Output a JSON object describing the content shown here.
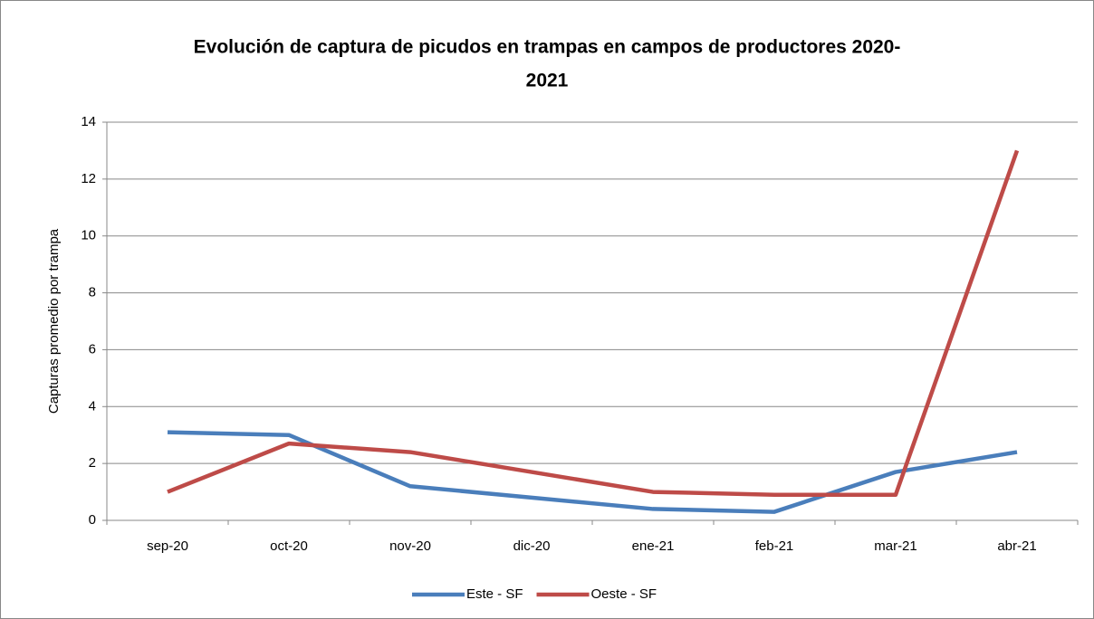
{
  "chart_data": {
    "type": "line",
    "title": [
      "Evolución de captura de picudos en trampas en campos de productores 2020-",
      "2021"
    ],
    "y_label": "Capturas promedio por trampa",
    "categories": [
      "sep-20",
      "oct-20",
      "nov-20",
      "dic-20",
      "ene-21",
      "feb-21",
      "mar-21",
      "abr-21"
    ],
    "series": [
      {
        "name": "Este - SF",
        "color": "#4a7ebb",
        "values": [
          3.1,
          3.0,
          1.2,
          0.8,
          0.4,
          0.3,
          1.7,
          2.4
        ]
      },
      {
        "name": "Oeste - SF",
        "color": "#be4b48",
        "values": [
          1.0,
          2.7,
          2.4,
          1.7,
          1.0,
          0.9,
          0.9,
          13
        ]
      }
    ],
    "ylim": [
      0,
      14
    ],
    "yticks": [
      0,
      2,
      4,
      6,
      8,
      10,
      12,
      14
    ],
    "grid": true,
    "legend": "bottom"
  }
}
